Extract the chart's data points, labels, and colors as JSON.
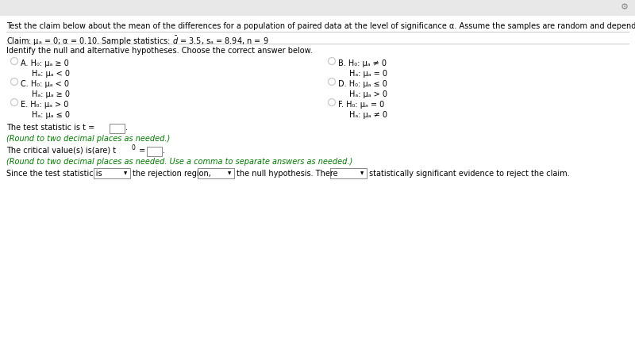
{
  "bg_color": "#ffffff",
  "top_bar_color": "#f0f0f0",
  "top_text": "Test the claim below about the mean of the differences for a population of paired data at the level of significance α. Assume the samples are random and dependent, and the populations are normally distributed.",
  "identify_text": "Identify the null and alternative hypotheses. Choose the correct answer below.",
  "test_stat_text": "The test statistic is t =",
  "round_note1": "(Round to two decimal places as needed.)",
  "critical_val_text": "The critical value(s) is(are) t",
  "critical_val_text2": " =",
  "round_note2": "(Round to two decimal places as needed. Use a comma to separate answers as needed.)",
  "conclusion_text1": "Since the test statistic is",
  "conclusion_text2": "the rejection region,",
  "conclusion_text3": "the null hypothesis. There",
  "conclusion_text4": "statistically significant evidence to reject the claim.",
  "circle_color": "#c8c8c8",
  "text_color": "#000000",
  "green_text_color": "#007700",
  "font_size": 7.0,
  "divider_color": "#cccccc",
  "box_edge_color": "#888888",
  "gear_color": "#888888"
}
